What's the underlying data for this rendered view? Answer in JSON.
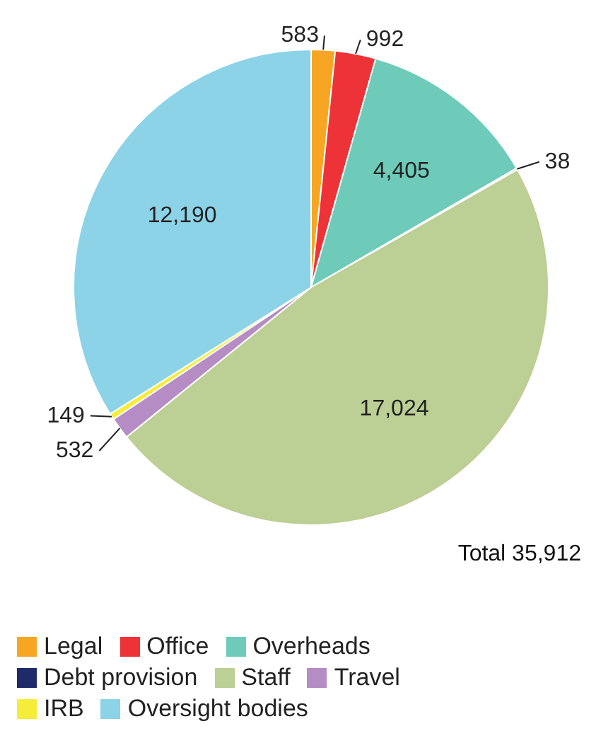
{
  "chart_data": {
    "type": "pie",
    "categories": [
      "Legal",
      "Office",
      "Overheads",
      "Debt provision",
      "Staff",
      "Travel",
      "IRB",
      "Oversight bodies"
    ],
    "values": [
      583,
      992,
      4405,
      38,
      17024,
      532,
      149,
      12190
    ],
    "colors": [
      "#f7a623",
      "#ee3338",
      "#6ecbb9",
      "#1f2a6b",
      "#bccf94",
      "#b58cc4",
      "#f6ec3a",
      "#8dd3e8"
    ],
    "value_labels": [
      "583",
      "992",
      "4,405",
      "38",
      "17,024",
      "532",
      "149",
      "12,190"
    ],
    "legend": "bottom",
    "annotations": [
      "Total 35,912"
    ]
  }
}
